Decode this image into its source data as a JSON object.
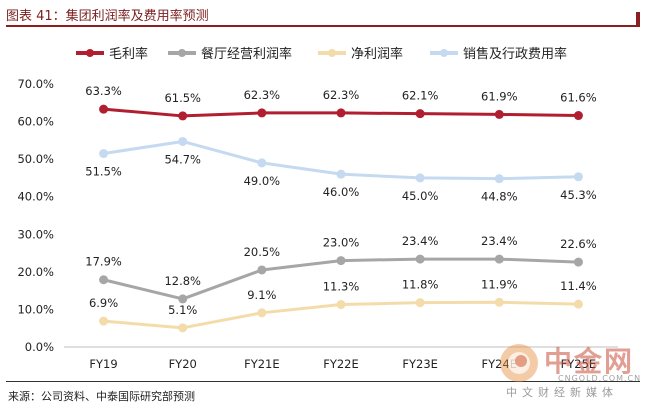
{
  "header": {
    "title": "图表 41：集团利润率及费用率预测"
  },
  "footer": {
    "source": "来源：公司资料、中泰国际研究部预测"
  },
  "watermark": {
    "brand": "中金网",
    "domain": "CNGOLD.COM.CN",
    "tagline": "中文财经新媒体"
  },
  "chart_data": {
    "type": "line",
    "categories": [
      "FY19",
      "FY20",
      "FY21E",
      "FY22E",
      "FY23E",
      "FY24E",
      "FY25E"
    ],
    "ylim": [
      0,
      70
    ],
    "yticks": [
      "0.0%",
      "10.0%",
      "20.0%",
      "30.0%",
      "40.0%",
      "50.0%",
      "60.0%",
      "70.0%"
    ],
    "legend_position": "top",
    "grid": false,
    "series": [
      {
        "name": "毛利率",
        "color": "#b01e2f",
        "values": [
          63.3,
          61.5,
          62.3,
          62.3,
          62.1,
          61.9,
          61.6
        ],
        "labels": [
          "63.3%",
          "61.5%",
          "62.3%",
          "62.3%",
          "62.1%",
          "61.9%",
          "61.6%"
        ],
        "label_pos": "above"
      },
      {
        "name": "餐厅经营利润率",
        "color": "#a6a6a6",
        "values": [
          17.9,
          12.8,
          20.5,
          23.0,
          23.4,
          23.4,
          22.6
        ],
        "labels": [
          "17.9%",
          "12.8%",
          "20.5%",
          "23.0%",
          "23.4%",
          "23.4%",
          "22.6%"
        ],
        "label_pos": "above"
      },
      {
        "name": "净利润率",
        "color": "#f3dcaa",
        "values": [
          6.9,
          5.1,
          9.1,
          11.3,
          11.8,
          11.9,
          11.4
        ],
        "labels": [
          "6.9%",
          "5.1%",
          "9.1%",
          "11.3%",
          "11.8%",
          "11.9%",
          "11.4%"
        ],
        "label_pos": "above"
      },
      {
        "name": "销售及行政费用率",
        "color": "#c5daf0",
        "values": [
          51.5,
          54.7,
          49.0,
          46.0,
          45.0,
          44.8,
          45.3
        ],
        "labels": [
          "51.5%",
          "54.7%",
          "49.0%",
          "46.0%",
          "45.0%",
          "44.8%",
          "45.3%"
        ],
        "label_pos": "below"
      }
    ]
  }
}
